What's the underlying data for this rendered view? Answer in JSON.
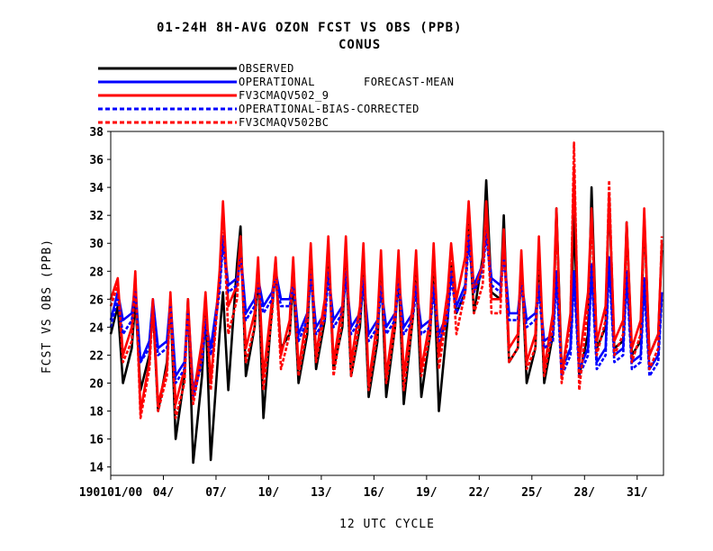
{
  "chart_data": {
    "type": "line",
    "title": "01-24H    8H-AVG OZON FCST VS OBS (PPB)",
    "subtitle": "CONUS",
    "legend_extra": "FORECAST-MEAN",
    "xlabel": "12 UTC CYCLE",
    "ylabel": "FCST VS OBS (PPB)",
    "ylim": [
      13.4,
      38
    ],
    "yticks": [
      14,
      16,
      18,
      20,
      22,
      24,
      26,
      28,
      30,
      32,
      34,
      36,
      38
    ],
    "xlim": [
      1,
      32.5
    ],
    "xtick_positions": [
      1,
      4,
      7,
      10,
      13,
      16,
      19,
      22,
      25,
      28,
      31
    ],
    "xtick_labels": [
      "190101/00",
      "04/",
      "07/",
      "10/",
      "13/",
      "16/",
      "19/",
      "22/",
      "25/",
      "28/",
      "31/"
    ],
    "grid": false,
    "legend_position": "top-left",
    "series": [
      {
        "name": "OBSERVED",
        "color": "#000000",
        "dash": "solid",
        "x": [
          1.0,
          1.4,
          1.7,
          2.2,
          2.4,
          2.7,
          3.2,
          3.4,
          3.7,
          4.2,
          4.4,
          4.7,
          5.2,
          5.4,
          5.7,
          6.2,
          6.4,
          6.7,
          7.2,
          7.4,
          7.7,
          8.2,
          8.4,
          8.7,
          9.2,
          9.4,
          9.7,
          10.2,
          10.4,
          10.7,
          11.2,
          11.4,
          11.7,
          12.2,
          12.4,
          12.7,
          13.2,
          13.4,
          13.7,
          14.2,
          14.4,
          14.7,
          15.2,
          15.4,
          15.7,
          16.2,
          16.4,
          16.7,
          17.2,
          17.4,
          17.7,
          18.2,
          18.4,
          18.7,
          19.2,
          19.4,
          19.7,
          20.2,
          20.4,
          20.7,
          21.2,
          21.4,
          21.7,
          22.2,
          22.4,
          22.7,
          23.2,
          23.4,
          23.7,
          24.2,
          24.4,
          24.7,
          25.2,
          25.4,
          25.7,
          26.2,
          26.4,
          26.7,
          27.2,
          27.4,
          27.7,
          28.2,
          28.4,
          28.7,
          29.2,
          29.4,
          29.7,
          30.2,
          30.4,
          30.7,
          31.2,
          31.4,
          31.7,
          32.2,
          32.4
        ],
        "values": [
          23.5,
          25.5,
          20.0,
          22.5,
          26.0,
          19.5,
          22.0,
          25.5,
          18.0,
          21.5,
          26.0,
          16.0,
          20.5,
          26.0,
          14.3,
          20.5,
          25.5,
          14.5,
          23.5,
          26.5,
          19.5,
          28.5,
          31.2,
          20.5,
          24.0,
          28.0,
          17.5,
          25.5,
          28.0,
          22.5,
          23.5,
          27.5,
          20.0,
          23.5,
          29.0,
          21.0,
          24.5,
          29.5,
          21.0,
          24.0,
          29.0,
          20.5,
          24.0,
          28.0,
          19.0,
          23.0,
          28.5,
          19.0,
          24.0,
          28.0,
          18.5,
          24.5,
          28.0,
          19.0,
          23.5,
          28.5,
          18.0,
          24.5,
          28.5,
          25.0,
          26.5,
          31.5,
          25.0,
          29.0,
          34.5,
          26.5,
          26.0,
          32.0,
          21.5,
          22.5,
          29.0,
          20.0,
          22.5,
          29.5,
          20.0,
          23.5,
          32.5,
          21.0,
          22.5,
          32.0,
          20.5,
          23.5,
          34.0,
          22.5,
          24.0,
          33.5,
          22.5,
          23.0,
          31.5,
          22.0,
          23.0,
          32.0,
          22.0,
          23.5,
          29.5
        ]
      },
      {
        "name": "OPERATIONAL",
        "color": "#0000ff",
        "dash": "solid",
        "x": [
          1.0,
          1.4,
          1.7,
          2.2,
          2.4,
          2.7,
          3.2,
          3.4,
          3.7,
          4.2,
          4.4,
          4.7,
          5.2,
          5.4,
          5.7,
          6.2,
          6.4,
          6.7,
          7.2,
          7.4,
          7.7,
          8.2,
          8.4,
          8.7,
          9.2,
          9.4,
          9.7,
          10.2,
          10.4,
          10.7,
          11.2,
          11.4,
          11.7,
          12.2,
          12.4,
          12.7,
          13.2,
          13.4,
          13.7,
          14.2,
          14.4,
          14.7,
          15.2,
          15.4,
          15.7,
          16.2,
          16.4,
          16.7,
          17.2,
          17.4,
          17.7,
          18.2,
          18.4,
          18.7,
          19.2,
          19.4,
          19.7,
          20.2,
          20.4,
          20.7,
          21.2,
          21.4,
          21.7,
          22.2,
          22.4,
          22.7,
          23.2,
          23.4,
          23.7,
          24.2,
          24.4,
          24.7,
          25.2,
          25.4,
          25.7,
          26.2,
          26.4,
          26.7,
          27.2,
          27.4,
          27.7,
          28.2,
          28.4,
          28.7,
          29.2,
          29.4,
          29.7,
          30.2,
          30.4,
          30.7,
          31.2,
          31.4,
          31.7,
          32.2,
          32.4
        ],
        "values": [
          24.5,
          26.5,
          24.5,
          25.0,
          27.0,
          21.5,
          23.0,
          26.0,
          22.5,
          23.0,
          26.0,
          20.5,
          21.5,
          25.5,
          19.5,
          22.0,
          24.5,
          22.5,
          27.0,
          30.5,
          27.0,
          27.5,
          29.5,
          25.0,
          26.0,
          27.5,
          25.5,
          26.5,
          28.0,
          26.0,
          26.0,
          27.5,
          23.5,
          25.0,
          28.0,
          24.0,
          25.0,
          28.0,
          24.5,
          25.5,
          28.0,
          24.0,
          25.0,
          27.5,
          23.5,
          24.5,
          27.0,
          24.0,
          25.0,
          27.5,
          24.0,
          25.0,
          27.0,
          24.0,
          24.5,
          27.0,
          23.5,
          25.0,
          28.0,
          25.5,
          27.0,
          30.5,
          27.0,
          28.5,
          31.0,
          27.5,
          27.0,
          29.5,
          25.0,
          25.0,
          27.5,
          24.5,
          25.0,
          27.0,
          23.0,
          23.5,
          28.0,
          21.0,
          22.5,
          28.0,
          21.0,
          22.5,
          28.5,
          21.5,
          22.5,
          29.0,
          22.0,
          22.5,
          28.0,
          21.5,
          22.0,
          27.5,
          21.0,
          22.0,
          26.5
        ]
      },
      {
        "name": "FV3CMAQV502_9",
        "color": "#ff0000",
        "dash": "solid",
        "x": [
          1.0,
          1.4,
          1.7,
          2.2,
          2.4,
          2.7,
          3.2,
          3.4,
          3.7,
          4.2,
          4.4,
          4.7,
          5.2,
          5.4,
          5.7,
          6.2,
          6.4,
          6.7,
          7.2,
          7.4,
          7.7,
          8.2,
          8.4,
          8.7,
          9.2,
          9.4,
          9.7,
          10.2,
          10.4,
          10.7,
          11.2,
          11.4,
          11.7,
          12.2,
          12.4,
          12.7,
          13.2,
          13.4,
          13.7,
          14.2,
          14.4,
          14.7,
          15.2,
          15.4,
          15.7,
          16.2,
          16.4,
          16.7,
          17.2,
          17.4,
          17.7,
          18.2,
          18.4,
          18.7,
          19.2,
          19.4,
          19.7,
          20.2,
          20.4,
          20.7,
          21.2,
          21.4,
          21.7,
          22.2,
          22.4,
          22.7,
          23.2,
          23.4,
          23.7,
          24.2,
          24.4,
          24.7,
          25.2,
          25.4,
          25.7,
          26.2,
          26.4,
          26.7,
          27.2,
          27.4,
          27.7,
          28.2,
          28.4,
          28.7,
          29.2,
          29.4,
          29.7,
          30.2,
          30.4,
          30.7,
          31.2,
          31.4,
          31.7,
          32.2,
          32.4
        ],
        "values": [
          26.0,
          27.5,
          22.0,
          24.0,
          28.0,
          18.0,
          21.5,
          26.0,
          18.5,
          21.0,
          26.5,
          18.5,
          21.0,
          26.0,
          19.0,
          23.0,
          26.5,
          20.0,
          28.0,
          33.0,
          25.5,
          27.0,
          30.5,
          22.5,
          25.0,
          29.0,
          20.5,
          26.0,
          29.0,
          22.0,
          24.5,
          29.0,
          21.0,
          25.0,
          30.0,
          22.0,
          26.0,
          30.5,
          21.5,
          25.5,
          30.5,
          21.5,
          25.5,
          30.0,
          20.0,
          24.5,
          29.5,
          20.5,
          25.0,
          29.5,
          20.5,
          25.5,
          29.5,
          21.0,
          24.5,
          30.0,
          22.0,
          26.5,
          30.0,
          26.0,
          29.0,
          33.0,
          26.5,
          28.5,
          33.0,
          26.0,
          26.0,
          31.0,
          22.5,
          23.5,
          29.5,
          21.5,
          23.5,
          30.5,
          21.0,
          25.0,
          32.5,
          20.5,
          25.0,
          35.5,
          21.5,
          26.5,
          32.5,
          23.0,
          25.5,
          33.5,
          23.0,
          24.5,
          31.5,
          22.5,
          24.5,
          32.5,
          22.0,
          23.5,
          30.0
        ]
      },
      {
        "name": "OPERATIONAL-BIAS-CORRECTED",
        "color": "#0000ff",
        "dash": "dashed",
        "x": [
          1.0,
          1.4,
          1.7,
          2.2,
          2.4,
          2.7,
          3.2,
          3.4,
          3.7,
          4.2,
          4.4,
          4.7,
          5.2,
          5.4,
          5.7,
          6.2,
          6.4,
          6.7,
          7.2,
          7.4,
          7.7,
          8.2,
          8.4,
          8.7,
          9.2,
          9.4,
          9.7,
          10.2,
          10.4,
          10.7,
          11.2,
          11.4,
          11.7,
          12.2,
          12.4,
          12.7,
          13.2,
          13.4,
          13.7,
          14.2,
          14.4,
          14.7,
          15.2,
          15.4,
          15.7,
          16.2,
          16.4,
          16.7,
          17.2,
          17.4,
          17.7,
          18.2,
          18.4,
          18.7,
          19.2,
          19.4,
          19.7,
          20.2,
          20.4,
          20.7,
          21.2,
          21.4,
          21.7,
          22.2,
          22.4,
          22.7,
          23.2,
          23.4,
          23.7,
          24.2,
          24.4,
          24.7,
          25.2,
          25.4,
          25.7,
          26.2,
          26.4,
          26.7,
          27.2,
          27.4,
          27.7,
          28.2,
          28.4,
          28.7,
          29.2,
          29.4,
          29.7,
          30.2,
          30.4,
          30.7,
          31.2,
          31.4,
          31.7,
          32.2,
          32.4
        ],
        "values": [
          24.0,
          26.0,
          23.5,
          24.5,
          26.5,
          21.5,
          22.5,
          25.5,
          22.0,
          22.5,
          25.5,
          20.0,
          21.0,
          25.0,
          19.0,
          21.5,
          24.0,
          22.0,
          26.5,
          30.0,
          26.5,
          27.0,
          29.0,
          24.5,
          25.5,
          27.0,
          25.0,
          26.0,
          27.5,
          25.5,
          25.5,
          27.0,
          23.0,
          24.5,
          27.5,
          23.5,
          24.5,
          27.5,
          24.0,
          25.0,
          27.5,
          23.5,
          24.5,
          27.0,
          23.0,
          24.0,
          26.5,
          23.5,
          24.5,
          27.0,
          23.5,
          24.5,
          26.5,
          23.5,
          24.0,
          26.5,
          23.0,
          24.5,
          27.5,
          25.0,
          26.5,
          30.0,
          26.5,
          28.0,
          30.5,
          27.0,
          26.5,
          29.0,
          24.5,
          24.5,
          27.0,
          24.0,
          24.5,
          26.5,
          22.5,
          23.0,
          27.5,
          20.5,
          22.0,
          27.5,
          20.5,
          22.0,
          28.0,
          21.0,
          22.0,
          28.5,
          21.5,
          22.0,
          27.5,
          21.0,
          21.5,
          27.0,
          20.5,
          21.5,
          26.0
        ]
      },
      {
        "name": "FV3CMAQV502BC",
        "color": "#ff0000",
        "dash": "dashed",
        "x": [
          1.0,
          1.4,
          1.7,
          2.2,
          2.4,
          2.7,
          3.2,
          3.4,
          3.7,
          4.2,
          4.4,
          4.7,
          5.2,
          5.4,
          5.7,
          6.2,
          6.4,
          6.7,
          7.2,
          7.4,
          7.7,
          8.2,
          8.4,
          8.7,
          9.2,
          9.4,
          9.7,
          10.2,
          10.4,
          10.7,
          11.2,
          11.4,
          11.7,
          12.2,
          12.4,
          12.7,
          13.2,
          13.4,
          13.7,
          14.2,
          14.4,
          14.7,
          15.2,
          15.4,
          15.7,
          16.2,
          16.4,
          16.7,
          17.2,
          17.4,
          17.7,
          18.2,
          18.4,
          18.7,
          19.2,
          19.4,
          19.7,
          20.2,
          20.4,
          20.7,
          21.2,
          21.4,
          21.7,
          22.2,
          22.4,
          22.7,
          23.2,
          23.4,
          23.7,
          24.2,
          24.4,
          24.7,
          25.2,
          25.4,
          25.7,
          26.2,
          26.4,
          26.7,
          27.2,
          27.4,
          27.7,
          28.2,
          28.4,
          28.7,
          29.2,
          29.4,
          29.7,
          30.2,
          30.4,
          30.7,
          31.2,
          31.4,
          31.7,
          32.2,
          32.4
        ],
        "values": [
          25.5,
          27.0,
          21.5,
          23.0,
          27.5,
          17.5,
          21.0,
          25.5,
          18.0,
          20.5,
          26.0,
          17.5,
          20.0,
          25.5,
          18.5,
          22.0,
          26.0,
          19.5,
          27.5,
          32.5,
          23.5,
          26.0,
          30.0,
          21.5,
          24.0,
          28.5,
          19.5,
          25.0,
          28.5,
          21.0,
          23.5,
          28.5,
          20.5,
          24.0,
          29.5,
          21.5,
          25.0,
          30.0,
          20.5,
          24.5,
          30.0,
          20.5,
          24.5,
          29.5,
          19.5,
          23.5,
          29.0,
          20.0,
          24.0,
          29.0,
          19.5,
          24.5,
          29.0,
          20.5,
          23.5,
          29.5,
          21.0,
          25.5,
          29.5,
          23.5,
          26.5,
          32.5,
          25.0,
          27.0,
          32.5,
          25.0,
          25.0,
          30.5,
          21.5,
          22.5,
          29.0,
          21.0,
          22.5,
          30.0,
          20.5,
          24.0,
          32.0,
          20.0,
          24.5,
          37.2,
          19.5,
          25.5,
          32.0,
          22.0,
          24.5,
          34.5,
          22.0,
          23.5,
          31.0,
          21.5,
          23.5,
          32.0,
          21.0,
          22.5,
          30.5
        ]
      }
    ]
  }
}
